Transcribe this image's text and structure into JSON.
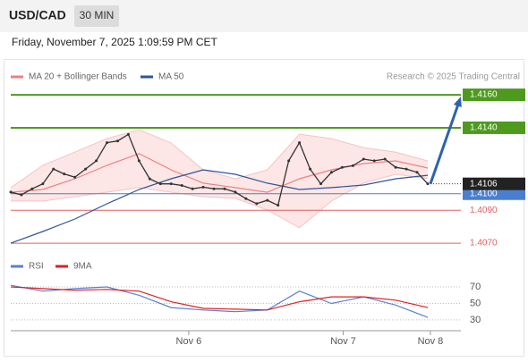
{
  "chart_data": {
    "type": "line",
    "title": "USD/CAD",
    "timeframe": "30 MIN",
    "subtitle": "Friday, November 7, 2025 1:09:59 PM CET",
    "source": "Research © 2025 Trading Central",
    "color": "#333333",
    "x": [
      0,
      1,
      2,
      3,
      4,
      5,
      6,
      7,
      8,
      9,
      10,
      11,
      12,
      13,
      14,
      15,
      16,
      17,
      18,
      19,
      20,
      21,
      22,
      23,
      24,
      25,
      26,
      27,
      28,
      29,
      30,
      31,
      32,
      33,
      34,
      35,
      36,
      37,
      38,
      39
    ],
    "values": [
      1.4101,
      1.40993,
      1.4103,
      1.4106,
      1.4115,
      1.4112,
      1.411,
      1.4115,
      1.412,
      1.4131,
      1.4132,
      1.4136,
      1.412,
      1.4109,
      1.4106,
      1.4106,
      1.4105,
      1.4103,
      1.4104,
      1.4103,
      1.4103,
      1.4101,
      1.4097,
      1.4094,
      1.4096,
      1.4093,
      1.412,
      1.4131,
      1.4115,
      1.4106,
      1.4113,
      1.4116,
      1.4117,
      1.4121,
      1.412,
      1.4121,
      1.4116,
      1.4115,
      1.4113,
      1.4106
    ],
    "xlim": [
      0,
      42.1
    ],
    "xticks": [
      {
        "value": 16.65,
        "label": "Nov 6"
      },
      {
        "value": 31.1,
        "label": "Nov 7"
      },
      {
        "value": 39.25,
        "label": "Nov 8"
      }
    ],
    "ylim": [
      1.4063,
      1.4166
    ],
    "overlays": [
      {
        "name": "MA 20 + Bollinger Bands",
        "color": "#f08080",
        "x": [
          0,
          3,
          6,
          9,
          12,
          15,
          18,
          21,
          24,
          27,
          30,
          33,
          36,
          39
        ],
        "values": [
          1.41009,
          1.41026,
          1.41091,
          1.41172,
          1.41243,
          1.41145,
          1.41064,
          1.41037,
          1.41009,
          1.41091,
          1.41145,
          1.41183,
          1.41199,
          1.41156
        ],
        "upper": [
          1.41037,
          1.41172,
          1.41253,
          1.41335,
          1.41389,
          1.41308,
          1.41145,
          1.41091,
          1.41145,
          1.41362,
          1.41335,
          1.4128,
          1.41253,
          1.41199
        ],
        "lower": [
          1.40955,
          1.40955,
          1.40982,
          1.41009,
          1.41037,
          1.41009,
          1.40982,
          1.40972,
          1.40901,
          1.40793,
          1.40955,
          1.41064,
          1.41118,
          1.41091
        ]
      },
      {
        "name": "MA 50",
        "color": "#2f5496",
        "x": [
          0,
          3,
          6,
          9,
          12,
          15,
          18,
          21,
          24,
          27,
          30,
          33,
          36,
          39
        ],
        "values": [
          1.407,
          1.40771,
          1.40847,
          1.40939,
          1.41026,
          1.41091,
          1.41145,
          1.41118,
          1.41064,
          1.41026,
          1.41037,
          1.41053,
          1.41091,
          1.41112
        ]
      }
    ],
    "levels": [
      {
        "value": 1.416,
        "label": "1.4160",
        "color": "#4e9a1e"
      },
      {
        "value": 1.414,
        "label": "1.4140",
        "color": "#4e9a1e"
      },
      {
        "value": 1.41,
        "label": "1.4100",
        "color": "#4a7fd0"
      },
      {
        "value": 1.409,
        "label": "1.4090",
        "color": "#e06060"
      },
      {
        "value": 1.407,
        "label": "1.4070",
        "color": "#e06060"
      }
    ],
    "last": 1.4106,
    "target_color": "#2e62b0",
    "rsi": {
      "ylim": [
        19,
        82
      ],
      "yticks": [
        70,
        50,
        30
      ],
      "series": [
        {
          "name": "RSI",
          "color": "#5b7fd6",
          "x": [
            0,
            3,
            6,
            9,
            12,
            15,
            18,
            21,
            24,
            27,
            30,
            33,
            36,
            39
          ],
          "values": [
            72,
            65,
            68,
            70,
            60,
            45,
            42,
            40,
            42,
            65,
            50,
            58,
            48,
            33
          ]
        },
        {
          "name": "9MA",
          "color": "#e02020",
          "x": [
            0,
            3,
            6,
            9,
            12,
            15,
            18,
            21,
            24,
            27,
            30,
            33,
            36,
            39
          ],
          "values": [
            70,
            68,
            66,
            67,
            65,
            52,
            44,
            43,
            42,
            52,
            58,
            58,
            54,
            45
          ]
        }
      ]
    }
  }
}
